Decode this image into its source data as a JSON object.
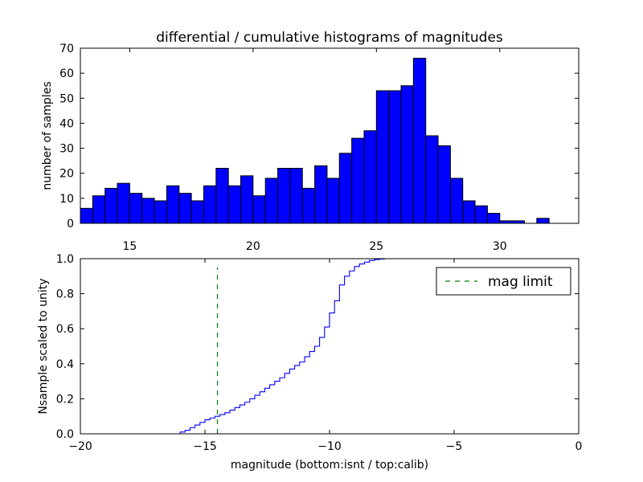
{
  "chart_data": [
    {
      "type": "bar",
      "title": "differential / cumulative histograms of magnitudes",
      "xlabel": "",
      "ylabel": "number of samples",
      "xlim": [
        13.0,
        33.2
      ],
      "ylim": [
        0,
        70
      ],
      "xticks": [
        15,
        20,
        25,
        30
      ],
      "yticks": [
        0,
        10,
        20,
        30,
        40,
        50,
        60,
        70
      ],
      "bin_start": 13.0,
      "bin_width": 0.5,
      "values": [
        6,
        11,
        14,
        16,
        12,
        10,
        9,
        15,
        12,
        9,
        15,
        22,
        15,
        19,
        11,
        18,
        22,
        22,
        14,
        23,
        18,
        28,
        34,
        37,
        53,
        53,
        55,
        66,
        35,
        31,
        18,
        9,
        7,
        4,
        1,
        1,
        0,
        2,
        0,
        0
      ],
      "color": "#0000ff",
      "edge_color": "#000000"
    },
    {
      "type": "line",
      "title": "",
      "xlabel": "magnitude (bottom:isnt / top:calib)",
      "ylabel": "Nsample scaled to unity",
      "xlim": [
        -20,
        0
      ],
      "ylim": [
        0.0,
        1.0
      ],
      "xticks": [
        -20,
        -15,
        -10,
        -5,
        0
      ],
      "yticks": [
        0.0,
        0.2,
        0.4,
        0.6,
        0.8,
        1.0
      ],
      "series": [
        {
          "name": "cumulative",
          "color": "#0000ff",
          "drawstyle": "steps",
          "x": [
            -20,
            -16.2,
            -16.0,
            -15.8,
            -15.6,
            -15.4,
            -15.2,
            -15.0,
            -14.8,
            -14.6,
            -14.4,
            -14.2,
            -14.0,
            -13.8,
            -13.6,
            -13.4,
            -13.2,
            -13.0,
            -12.8,
            -12.6,
            -12.4,
            -12.2,
            -12.0,
            -11.8,
            -11.6,
            -11.4,
            -11.2,
            -11.0,
            -10.8,
            -10.6,
            -10.4,
            -10.2,
            -10.0,
            -9.8,
            -9.6,
            -9.4,
            -9.2,
            -9.0,
            -8.8,
            -8.6,
            -8.4,
            -8.2,
            -8.0,
            -7.8,
            -7.6,
            -7.4,
            -7.0,
            0
          ],
          "y": [
            0.0,
            0.0,
            0.01,
            0.02,
            0.035,
            0.05,
            0.065,
            0.08,
            0.09,
            0.1,
            0.11,
            0.12,
            0.135,
            0.15,
            0.165,
            0.18,
            0.2,
            0.22,
            0.24,
            0.26,
            0.28,
            0.3,
            0.32,
            0.345,
            0.37,
            0.39,
            0.41,
            0.44,
            0.47,
            0.5,
            0.55,
            0.61,
            0.69,
            0.76,
            0.85,
            0.9,
            0.93,
            0.955,
            0.97,
            0.98,
            0.99,
            0.995,
            0.998,
            1.0,
            1.0,
            1.0,
            1.0,
            1.0
          ]
        },
        {
          "name": "mag limit",
          "color": "#008000",
          "linestyle": "dashed",
          "x": [
            -14.5,
            -14.5
          ],
          "y": [
            0.0,
            0.95
          ]
        }
      ],
      "legend": {
        "entries": [
          "mag limit"
        ],
        "placement": "top-right"
      }
    }
  ]
}
